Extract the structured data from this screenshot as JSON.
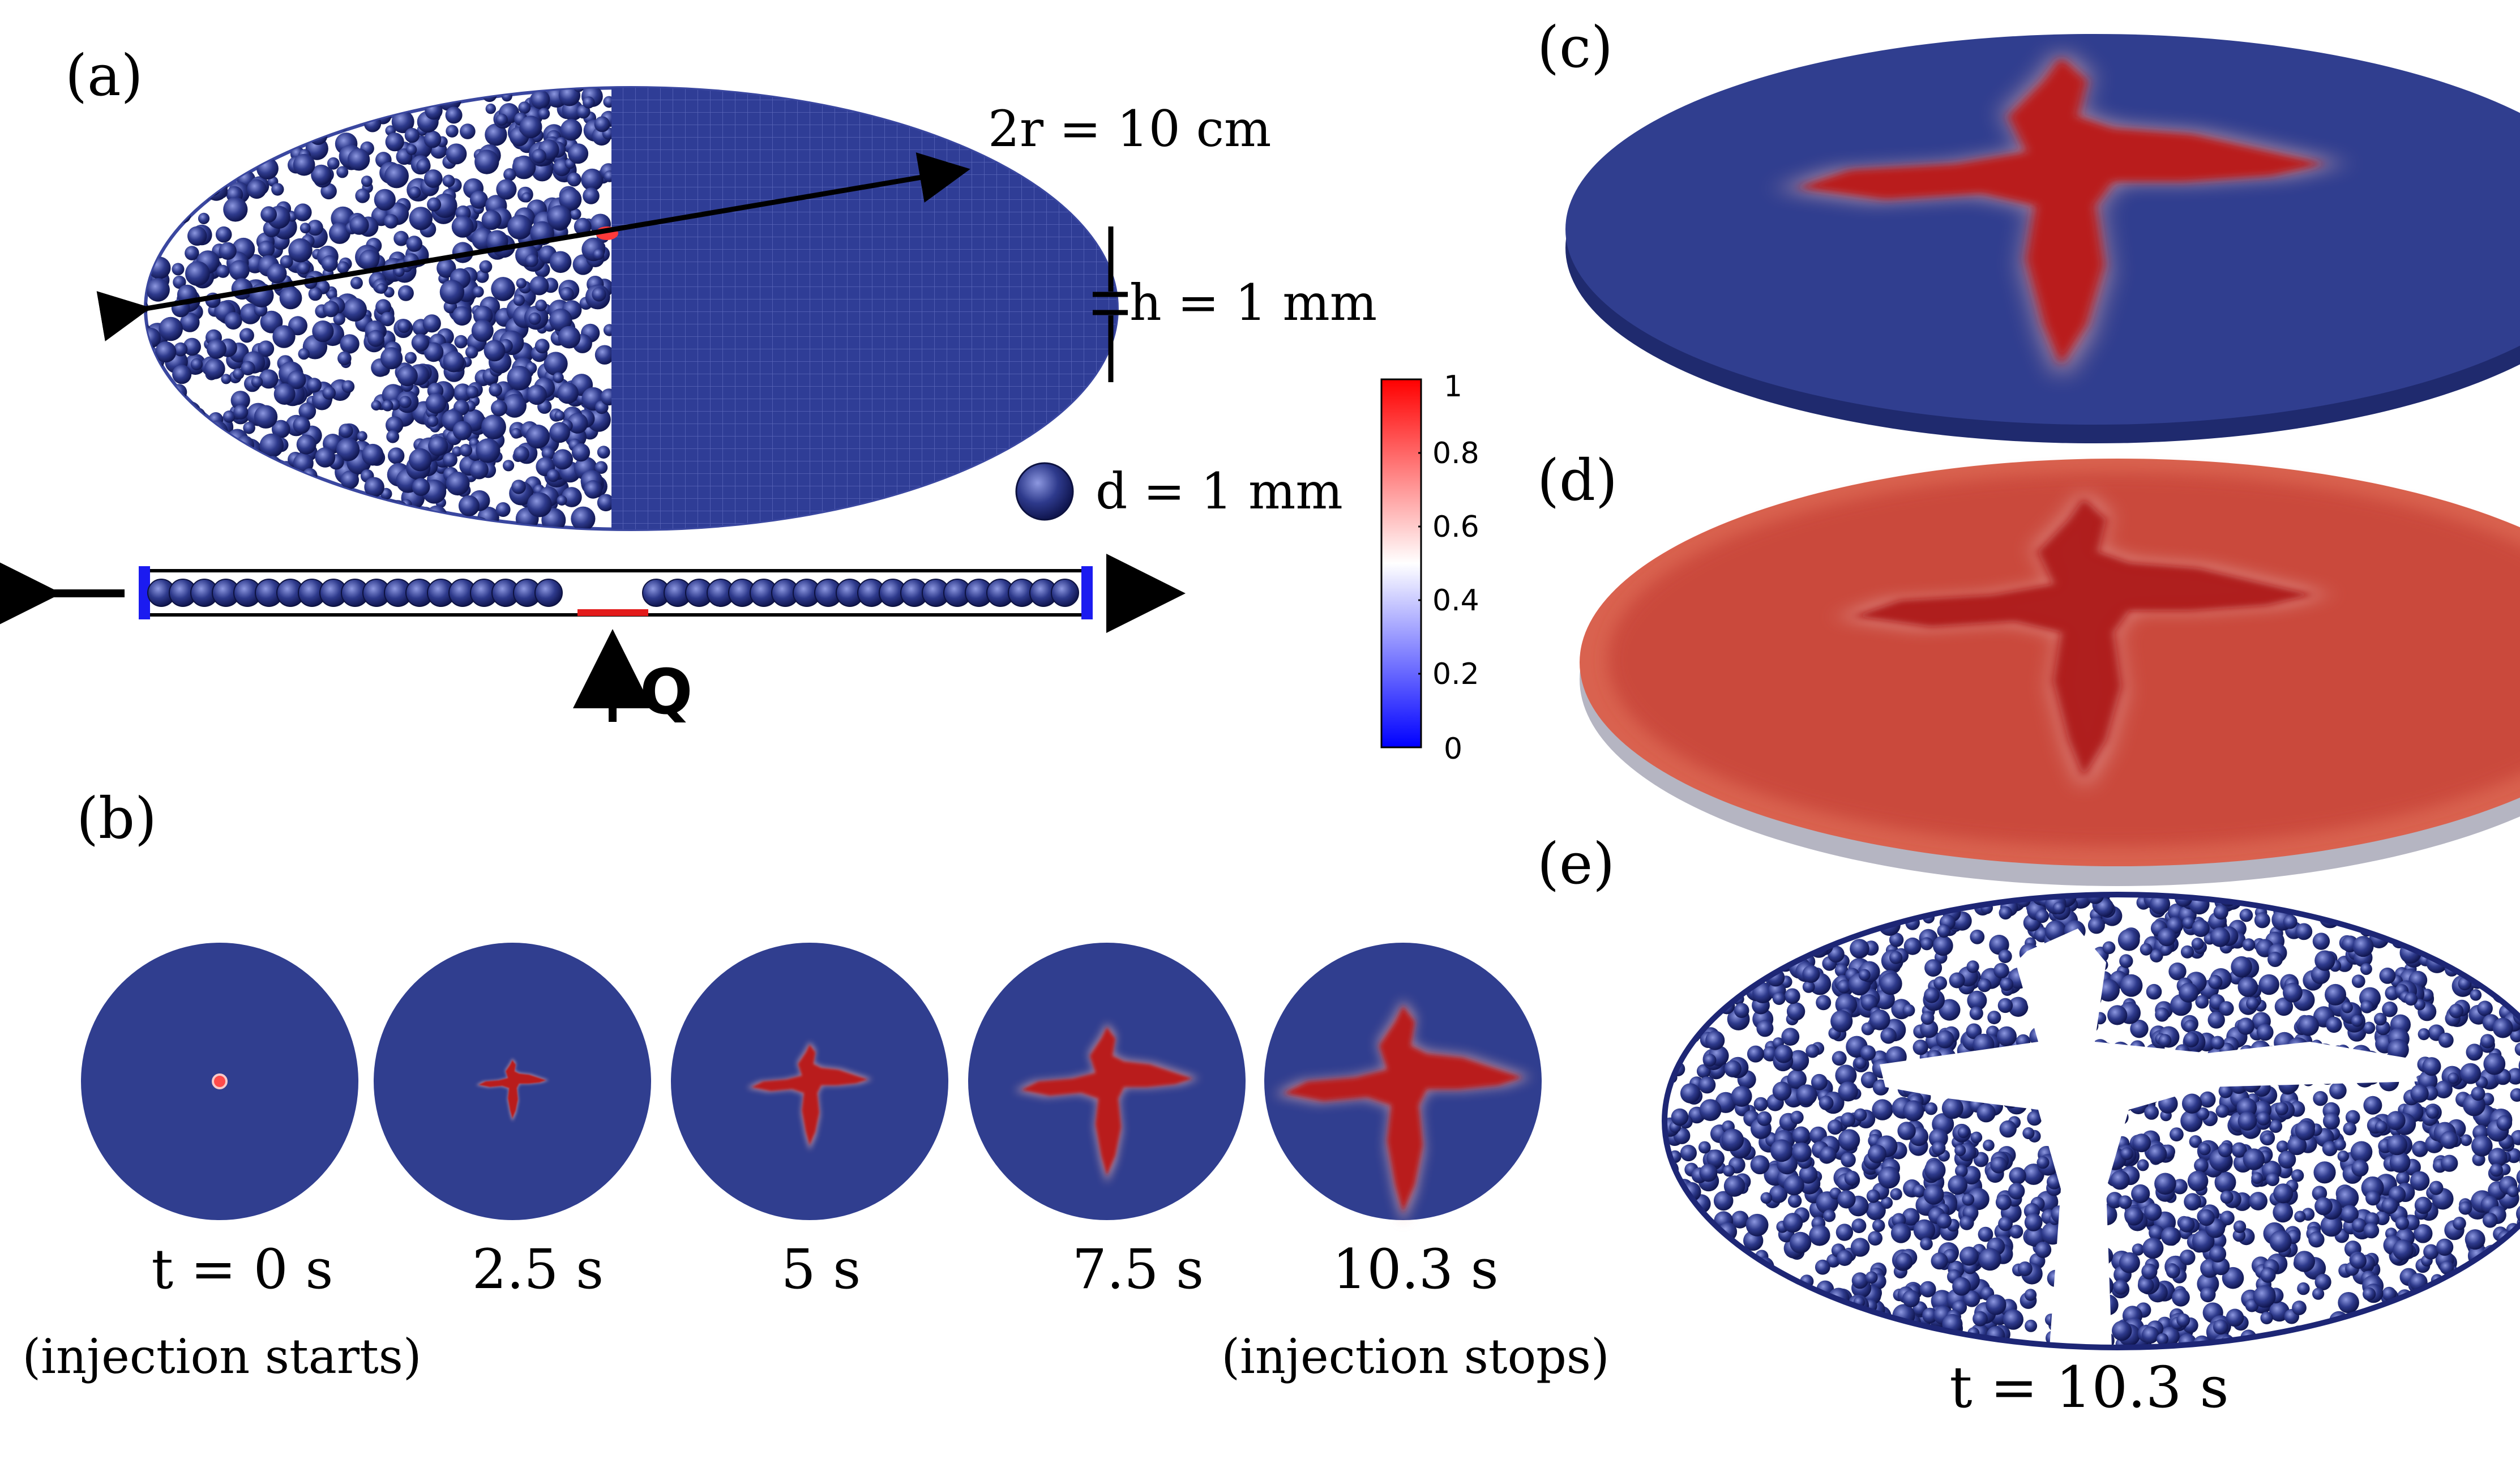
{
  "colors": {
    "particle_blue": "#2e3a8c",
    "particle_highlight": "#8d98e0",
    "field_blue": "#303e8f",
    "fracture_red": "#b91c1c",
    "phase_red": "#c9463a",
    "outlet_blue": "#1b1bf0",
    "inlet_red": "#e31b1b",
    "black": "#000000"
  },
  "panels": {
    "a": {
      "label": "(a)",
      "diameter_label": "2r = 10 cm",
      "height_label": "h = 1 mm",
      "particle_label": "d = 1 mm",
      "flow_label": "Q"
    },
    "b": {
      "label": "(b)",
      "snapshots": [
        {
          "time_label": "t = 0 s",
          "note": "(injection starts)"
        },
        {
          "time_label": "2.5 s",
          "note": ""
        },
        {
          "time_label": "5 s",
          "note": ""
        },
        {
          "time_label": "7.5 s",
          "note": ""
        },
        {
          "time_label": "10.3 s",
          "note": "(injection stops)"
        }
      ]
    },
    "c": {
      "label": "(c)"
    },
    "d": {
      "label": "(d)"
    },
    "e": {
      "label": "(e)",
      "time_label": "t = 10.3 s"
    }
  },
  "colorbar": {
    "min": 0,
    "max": 1,
    "ticks": [
      "1",
      "0.8",
      "0.6",
      "0.4",
      "0.2",
      "0"
    ],
    "colors": [
      "#ff0000",
      "#ffffff",
      "#0000ff"
    ]
  }
}
